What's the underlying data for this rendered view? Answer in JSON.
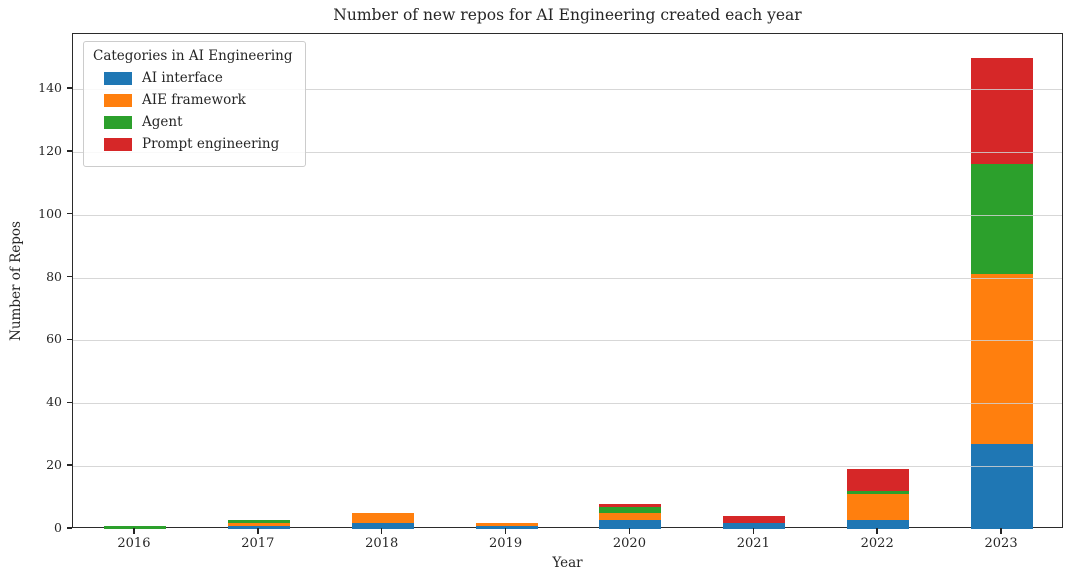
{
  "chart_data": {
    "type": "bar",
    "stacked": true,
    "title": "Number of new repos for AI Engineering created each year",
    "xlabel": "Year",
    "ylabel": "Number of Repos",
    "categories": [
      "2016",
      "2017",
      "2018",
      "2019",
      "2020",
      "2021",
      "2022",
      "2023"
    ],
    "series": [
      {
        "name": "AI interface",
        "color": "#1f77b4",
        "values": [
          0,
          1,
          2,
          1,
          3,
          2,
          3,
          27
        ]
      },
      {
        "name": "AIE framework",
        "color": "#ff7f0e",
        "values": [
          0,
          1,
          3,
          1,
          2,
          0,
          8,
          54
        ]
      },
      {
        "name": "Agent",
        "color": "#2ca02c",
        "values": [
          1,
          1,
          0,
          0,
          2,
          0,
          1,
          35
        ]
      },
      {
        "name": "Prompt engineering",
        "color": "#d62728",
        "values": [
          0,
          0,
          0,
          0,
          1,
          2,
          7,
          34
        ]
      }
    ],
    "totals": [
      1,
      3,
      5,
      2,
      8,
      4,
      19,
      150
    ],
    "yticks": [
      0,
      20,
      40,
      60,
      80,
      100,
      120,
      140
    ],
    "ylim": [
      0,
      157.5
    ],
    "grid": true,
    "legend": {
      "title": "Categories in AI Engineering",
      "position": "upper left"
    }
  },
  "colors": {
    "text": "#262626",
    "spine": "#2b2b2b",
    "grid": "#d0d0d0",
    "background": "#ffffff"
  }
}
